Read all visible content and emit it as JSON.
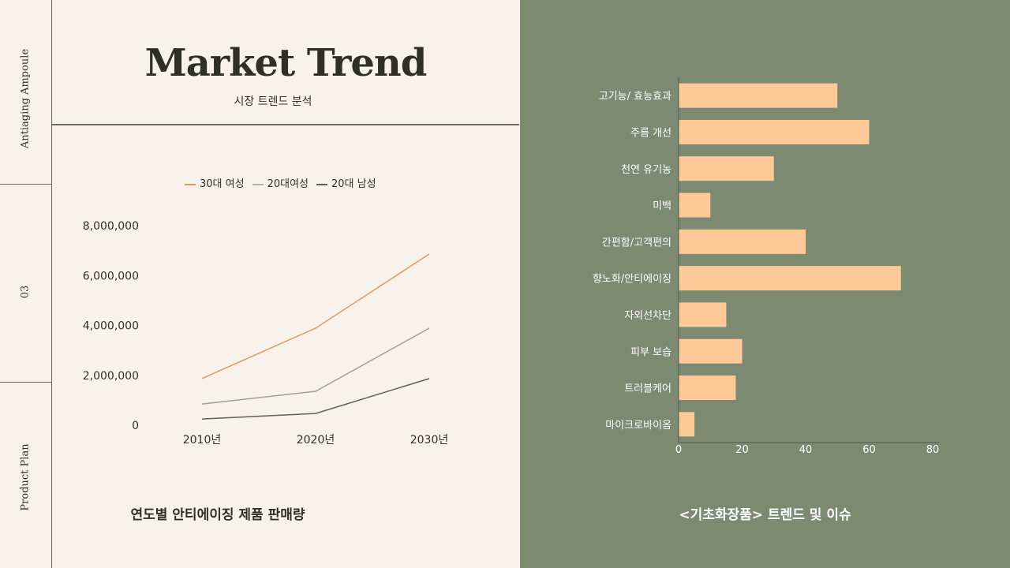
{
  "sidebar": {
    "top": "Antiaging Ampoule",
    "middle": "03",
    "bottom": "Product Plan"
  },
  "header": {
    "title": "Market Trend",
    "subtitle": "시장 트렌드 분석"
  },
  "colors": {
    "background": "#f7f3ec",
    "panel": "#7c8a72",
    "bar": "#ffca98",
    "line1": "#e8955a",
    "line2": "#a8b89a",
    "line3": "#5f5f5a"
  },
  "chart_data": [
    {
      "type": "line",
      "title": "연도별 안티에이징 제품 판매량",
      "categories": [
        "2010년",
        "2020년",
        "2030년"
      ],
      "ylim": [
        0,
        8000000
      ],
      "yticks": [
        "0",
        "2,000,000",
        "4,000,000",
        "6,000,000",
        "8,000,000"
      ],
      "legend": "top",
      "series": [
        {
          "name": "30대 여성",
          "values": [
            1870000,
            3890000,
            6860000
          ]
        },
        {
          "name": "20대여성",
          "values": [
            850000,
            1360000,
            3890000
          ]
        },
        {
          "name": "20대 남성",
          "values": [
            250000,
            470000,
            1870000
          ]
        }
      ]
    },
    {
      "type": "bar",
      "orientation": "horizontal",
      "title": "<기초화장품> 트렌드 및 이슈",
      "categories": [
        "고기능/ 효능효과",
        "주름 개선",
        "천연 유기농",
        "미백",
        "간편함/고객편의",
        "향노화/안티에이징",
        "자외선차단",
        "피부 보습",
        "트러블케어",
        "마이크로바이옴"
      ],
      "values": [
        50,
        60,
        30,
        10,
        40,
        70,
        15,
        20,
        18,
        5
      ],
      "xlim": [
        0,
        80
      ],
      "xticks": [
        "0",
        "20",
        "40",
        "60",
        "80"
      ]
    }
  ]
}
